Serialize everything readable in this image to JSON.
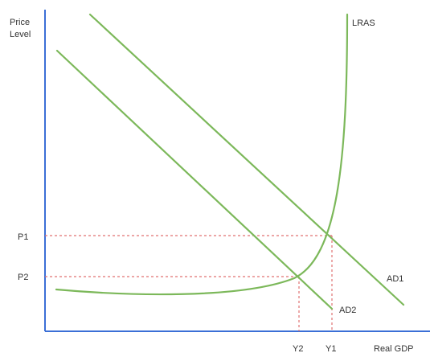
{
  "axes": {
    "y_label_line1": "Price",
    "y_label_line2": "Level",
    "x_label": "Real GDP"
  },
  "curves": {
    "lras": "LRAS",
    "ad1": "AD1",
    "ad2": "AD2"
  },
  "levels": {
    "p1": "P1",
    "p2": "P2",
    "y1": "Y1",
    "y2": "Y2"
  },
  "colors": {
    "curves": "#7cb85a",
    "guides": "#e07070",
    "axes": "#3b6fd6"
  }
}
